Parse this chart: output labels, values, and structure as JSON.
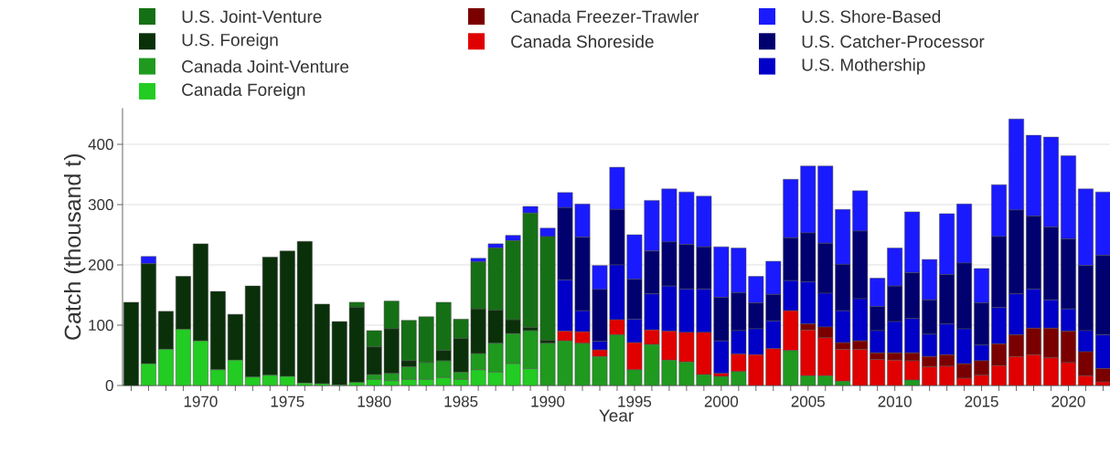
{
  "chart_data": {
    "type": "bar",
    "stacked": true,
    "xlabel": "Year",
    "ylabel": "Catch (thousand t)",
    "x": [
      1966,
      1967,
      1968,
      1969,
      1970,
      1971,
      1972,
      1973,
      1974,
      1975,
      1976,
      1977,
      1978,
      1979,
      1980,
      1981,
      1982,
      1983,
      1984,
      1985,
      1986,
      1987,
      1988,
      1989,
      1990,
      1991,
      1992,
      1993,
      1994,
      1995,
      1996,
      1997,
      1998,
      1999,
      2000,
      2001,
      2002,
      2003,
      2004,
      2005,
      2006,
      2007,
      2008,
      2009,
      2010,
      2011,
      2012,
      2013,
      2014,
      2015,
      2016,
      2017,
      2018,
      2019,
      2020,
      2021,
      2022
    ],
    "series": [
      {
        "name": "Canada Foreign",
        "color": "#22cc22",
        "values": [
          0,
          36,
          60,
          93,
          74,
          26,
          42,
          14,
          17,
          15,
          4,
          3,
          1,
          5,
          10,
          8,
          10,
          10,
          13,
          10,
          26,
          22,
          36,
          28,
          0,
          0,
          0,
          0,
          0,
          0,
          0,
          0,
          0,
          0,
          0,
          0,
          0,
          0,
          0,
          0,
          0,
          0,
          0,
          0,
          0,
          0,
          0,
          0,
          0,
          0,
          0,
          0,
          0,
          0,
          0,
          0,
          0
        ]
      },
      {
        "name": "Canada Joint-Venture",
        "color": "#1f9a1f",
        "values": [
          0,
          0,
          0,
          0,
          0,
          0,
          0,
          0,
          0,
          0,
          0,
          0,
          0,
          0,
          8,
          12,
          21,
          28,
          28,
          12,
          27,
          48,
          50,
          63,
          70,
          74,
          70,
          48,
          84,
          26,
          68,
          42,
          39,
          18,
          15,
          23,
          0,
          0,
          58,
          16,
          16,
          7,
          0,
          0,
          0,
          9,
          0,
          0,
          0,
          0,
          0,
          0,
          0,
          0,
          0,
          0,
          0
        ]
      },
      {
        "name": "Canada Shoreside",
        "color": "#e00000",
        "values": [
          0,
          0,
          0,
          0,
          0,
          0,
          0,
          0,
          0,
          0,
          0,
          0,
          0,
          0,
          0,
          0,
          0,
          0,
          0,
          0,
          0,
          0,
          0,
          0,
          0,
          16,
          19,
          11,
          25,
          45,
          24,
          48,
          49,
          70,
          5,
          29,
          51,
          61,
          66,
          76,
          63,
          53,
          60,
          43,
          42,
          32,
          31,
          32,
          12,
          17,
          33,
          48,
          51,
          46,
          38,
          16,
          6
        ]
      },
      {
        "name": "Canada Freezer-Trawler",
        "color": "#7a0000",
        "values": [
          0,
          0,
          0,
          0,
          0,
          0,
          0,
          0,
          0,
          0,
          0,
          0,
          0,
          0,
          0,
          0,
          0,
          0,
          0,
          0,
          0,
          0,
          0,
          0,
          0,
          0,
          0,
          0,
          0,
          0,
          0,
          0,
          0,
          0,
          0,
          0,
          0,
          0,
          0,
          10,
          18,
          11,
          14,
          11,
          12,
          13,
          17,
          19,
          24,
          24,
          36,
          36,
          44,
          49,
          52,
          40,
          22
        ]
      },
      {
        "name": "U.S. Foreign",
        "color": "#0a300a",
        "values": [
          138,
          166,
          63,
          88,
          161,
          130,
          76,
          151,
          196,
          208,
          235,
          132,
          105,
          125,
          46,
          74,
          10,
          0,
          17,
          56,
          74,
          55,
          23,
          5,
          5,
          0,
          0,
          0,
          0,
          0,
          0,
          0,
          0,
          0,
          0,
          0,
          0,
          0,
          0,
          0,
          0,
          0,
          0,
          0,
          0,
          0,
          0,
          0,
          0,
          0,
          0,
          0,
          0,
          0,
          0,
          0,
          0
        ]
      },
      {
        "name": "U.S. Joint-Venture",
        "color": "#157015",
        "values": [
          0,
          0,
          0,
          0,
          0,
          0,
          0,
          0,
          0,
          0,
          0,
          0,
          0,
          8,
          27,
          46,
          67,
          76,
          80,
          32,
          78,
          103,
          131,
          190,
          172,
          0,
          0,
          0,
          0,
          0,
          0,
          0,
          0,
          0,
          0,
          0,
          0,
          0,
          0,
          0,
          0,
          0,
          0,
          0,
          0,
          0,
          0,
          0,
          0,
          0,
          0,
          0,
          0,
          0,
          0,
          0,
          0
        ]
      },
      {
        "name": "U.S. Mothership",
        "color": "#0000c8",
        "values": [
          0,
          0,
          0,
          0,
          0,
          0,
          0,
          0,
          0,
          0,
          0,
          0,
          0,
          0,
          0,
          0,
          0,
          0,
          0,
          0,
          0,
          0,
          0,
          0,
          0,
          85,
          35,
          14,
          91,
          39,
          60,
          75,
          72,
          72,
          54,
          39,
          43,
          46,
          50,
          70,
          56,
          53,
          70,
          37,
          52,
          57,
          37,
          51,
          58,
          26,
          60,
          68,
          65,
          47,
          37,
          35,
          56
        ]
      },
      {
        "name": "U.S. Catcher-Processor",
        "color": "#00006e",
        "values": [
          0,
          0,
          0,
          0,
          0,
          0,
          0,
          0,
          0,
          0,
          0,
          0,
          0,
          0,
          0,
          0,
          0,
          0,
          0,
          0,
          0,
          0,
          0,
          0,
          0,
          120,
          122,
          86,
          92,
          66,
          71,
          73,
          74,
          70,
          72,
          63,
          43,
          44,
          71,
          81,
          83,
          77,
          112,
          40,
          59,
          76,
          57,
          82,
          109,
          70,
          118,
          139,
          121,
          121,
          116,
          108,
          132
        ]
      },
      {
        "name": "U.S. Shore-Based",
        "color": "#1a1aff",
        "values": [
          0,
          12,
          0,
          0,
          0,
          0,
          0,
          0,
          0,
          0,
          0,
          0,
          0,
          0,
          0,
          0,
          0,
          0,
          0,
          0,
          6,
          7,
          9,
          11,
          14,
          25,
          55,
          40,
          70,
          74,
          84,
          88,
          87,
          84,
          84,
          74,
          44,
          55,
          97,
          111,
          128,
          91,
          67,
          47,
          63,
          101,
          67,
          101,
          98,
          57,
          86,
          151,
          134,
          149,
          138,
          127,
          105
        ]
      }
    ],
    "xlim": [
      1965.5,
      2022.4
    ],
    "ylim": [
      0,
      460
    ],
    "xticks": [
      {
        "value": 1966,
        "label": null
      },
      {
        "value": 1967,
        "label": null
      },
      {
        "value": 1968,
        "label": null
      },
      {
        "value": 1969,
        "label": null
      },
      1970,
      {
        "value": 1971,
        "label": null
      },
      {
        "value": 1972,
        "label": null
      },
      {
        "value": 1973,
        "label": null
      },
      {
        "value": 1974,
        "label": null
      },
      1975,
      {
        "value": 1976,
        "label": null
      },
      {
        "value": 1977,
        "label": null
      },
      {
        "value": 1978,
        "label": null
      },
      {
        "value": 1979,
        "label": null
      },
      1980,
      {
        "value": 1981,
        "label": null
      },
      {
        "value": 1982,
        "label": null
      },
      {
        "value": 1983,
        "label": null
      },
      {
        "value": 1984,
        "label": null
      },
      1985,
      {
        "value": 1986,
        "label": null
      },
      {
        "value": 1987,
        "label": null
      },
      {
        "value": 1988,
        "label": null
      },
      {
        "value": 1989,
        "label": null
      },
      1990,
      {
        "value": 1991,
        "label": null
      },
      {
        "value": 1992,
        "label": null
      },
      {
        "value": 1993,
        "label": null
      },
      {
        "value": 1994,
        "label": null
      },
      1995,
      {
        "value": 1996,
        "label": null
      },
      {
        "value": 1997,
        "label": null
      },
      {
        "value": 1998,
        "label": null
      },
      {
        "value": 1999,
        "label": null
      },
      2000,
      {
        "value": 2001,
        "label": null
      },
      {
        "value": 2002,
        "label": null
      },
      {
        "value": 2003,
        "label": null
      },
      {
        "value": 2004,
        "label": null
      },
      2005,
      {
        "value": 2006,
        "label": null
      },
      {
        "value": 2007,
        "label": null
      },
      {
        "value": 2008,
        "label": null
      },
      {
        "value": 2009,
        "label": null
      },
      2010,
      {
        "value": 2011,
        "label": null
      },
      {
        "value": 2012,
        "label": null
      },
      {
        "value": 2013,
        "label": null
      },
      {
        "value": 2014,
        "label": null
      },
      2015,
      {
        "value": 2016,
        "label": null
      },
      {
        "value": 2017,
        "label": null
      },
      {
        "value": 2018,
        "label": null
      },
      {
        "value": 2019,
        "label": null
      },
      2020,
      {
        "value": 2021,
        "label": null
      },
      {
        "value": 2022,
        "label": null
      }
    ],
    "yticks": [
      0,
      100,
      200,
      300,
      400
    ],
    "grid": "y",
    "legend": "top"
  }
}
